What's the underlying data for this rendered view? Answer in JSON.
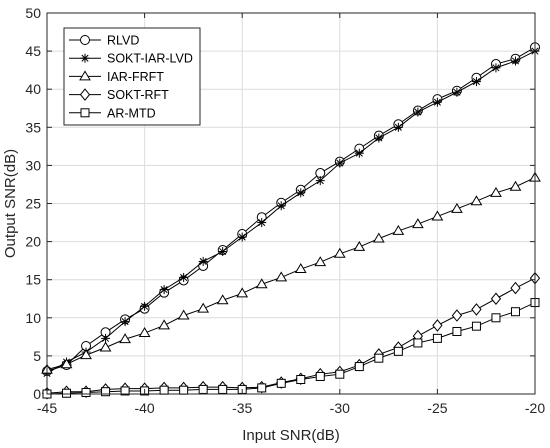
{
  "chart_data": {
    "type": "line",
    "xlabel": "Input SNR(dB)",
    "ylabel": "Output SNR(dB)",
    "xlim": [
      -45,
      -20
    ],
    "ylim": [
      0,
      50
    ],
    "xticks": [
      -45,
      -40,
      -35,
      -30,
      -25,
      -20
    ],
    "yticks": [
      0,
      5,
      10,
      15,
      20,
      25,
      30,
      35,
      40,
      45,
      50
    ],
    "grid": true,
    "legend_position": "top-left",
    "x": [
      -45,
      -44,
      -43,
      -42,
      -41,
      -40,
      -39,
      -38,
      -37,
      -36,
      -35,
      -34,
      -33,
      -32,
      -31,
      -30,
      -29,
      -28,
      -27,
      -26,
      -25,
      -24,
      -23,
      -22,
      -21,
      -20
    ],
    "series": [
      {
        "name": "RLVD",
        "marker": "circle",
        "values": [
          3.0,
          3.8,
          6.3,
          8.1,
          9.8,
          11.2,
          13.3,
          14.9,
          16.8,
          18.9,
          21.0,
          23.2,
          25.1,
          26.8,
          29.0,
          30.5,
          32.2,
          33.9,
          35.4,
          37.2,
          38.7,
          39.8,
          41.5,
          43.3,
          44.0,
          45.5
        ]
      },
      {
        "name": "SOKT-IAR-LVD",
        "marker": "asterisk",
        "values": [
          2.7,
          4.2,
          5.5,
          7.3,
          9.5,
          11.5,
          13.7,
          15.3,
          17.4,
          18.7,
          20.6,
          22.5,
          24.7,
          26.4,
          28.0,
          30.3,
          31.6,
          33.6,
          35.0,
          37.0,
          38.3,
          39.6,
          41.0,
          42.8,
          43.7,
          45.0
        ]
      },
      {
        "name": "IAR-FRFT",
        "marker": "triangle",
        "values": [
          3.2,
          3.9,
          5.1,
          6.1,
          7.2,
          8.0,
          9.0,
          10.3,
          11.2,
          12.3,
          13.2,
          14.4,
          15.3,
          16.4,
          17.3,
          18.4,
          19.3,
          20.4,
          21.4,
          22.3,
          23.3,
          24.3,
          25.3,
          26.4,
          27.2,
          28.4
        ]
      },
      {
        "name": "SOKT-RFT",
        "marker": "diamond",
        "values": [
          0.1,
          0.3,
          0.3,
          0.6,
          0.7,
          0.7,
          0.8,
          0.8,
          0.9,
          0.9,
          0.8,
          0.9,
          1.5,
          2.0,
          2.6,
          2.9,
          3.8,
          5.2,
          6.1,
          7.6,
          9.0,
          10.3,
          11.1,
          12.5,
          13.9,
          15.2
        ]
      },
      {
        "name": "AR-MTD",
        "marker": "square",
        "values": [
          0.0,
          0.1,
          0.2,
          0.3,
          0.4,
          0.4,
          0.5,
          0.5,
          0.6,
          0.6,
          0.6,
          0.8,
          1.4,
          1.9,
          2.3,
          2.6,
          3.6,
          4.7,
          5.6,
          6.7,
          7.3,
          8.2,
          8.9,
          10.0,
          10.8,
          12.0
        ]
      }
    ]
  }
}
